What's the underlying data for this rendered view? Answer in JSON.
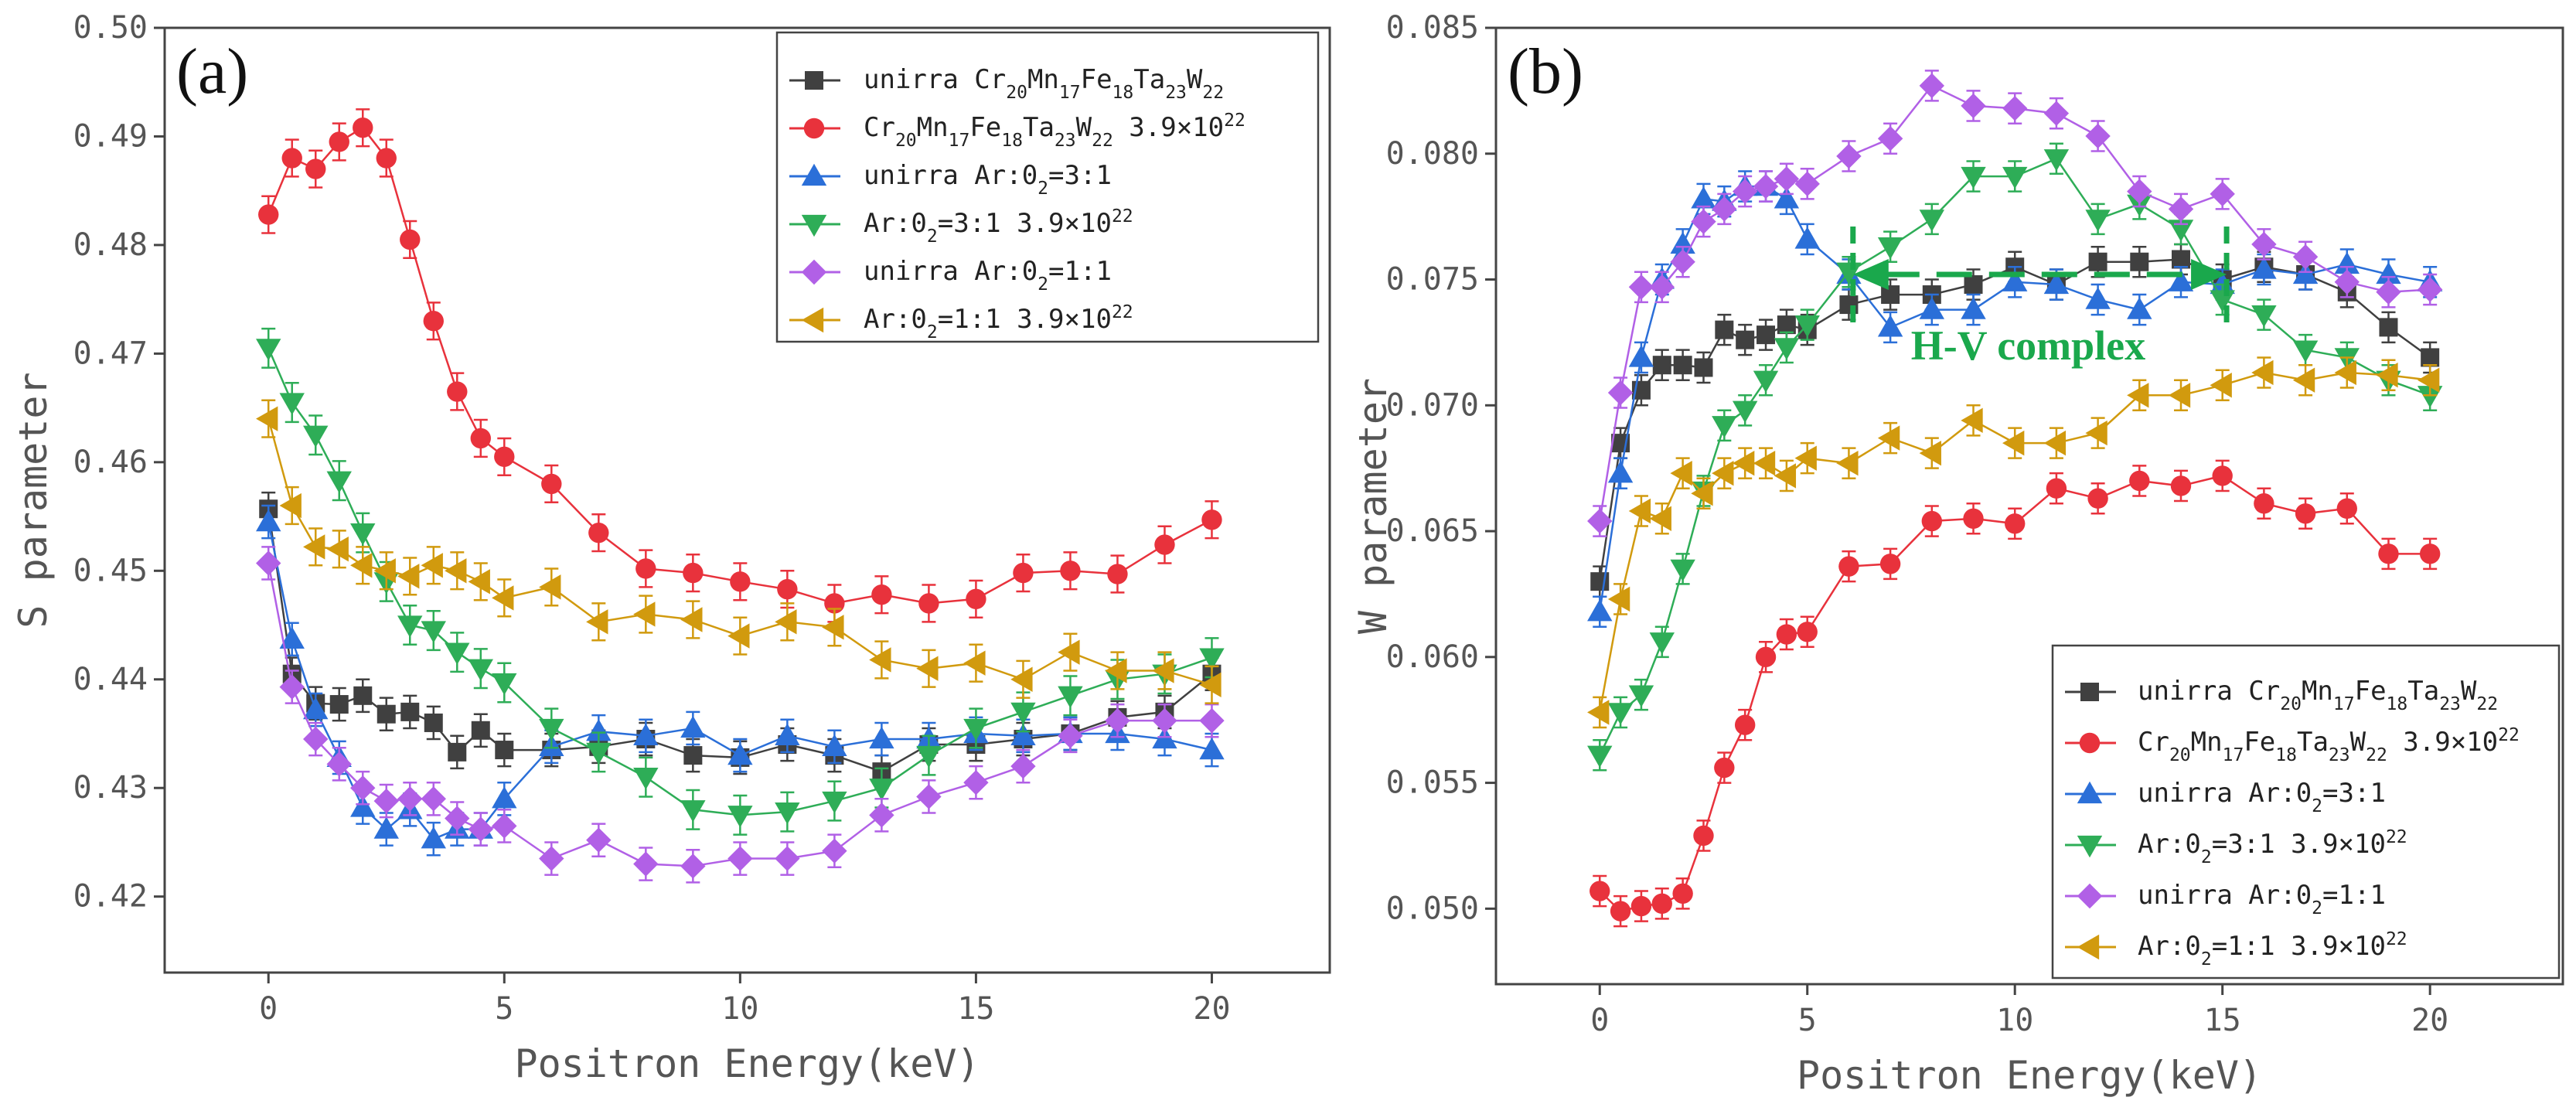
{
  "chart_data": [
    {
      "type": "line",
      "panel_label": "(a)",
      "xlabel": "Positron Energy(keV)",
      "ylabel": "S parameter",
      "xlim": [
        -2.2,
        22.5
      ],
      "ylim": [
        0.413,
        0.5
      ],
      "xticks": [
        0,
        5,
        10,
        15,
        20
      ],
      "xtick_labels": [
        "0",
        "5",
        "10",
        "15",
        "20"
      ],
      "yticks": [
        0.42,
        0.43,
        0.44,
        0.45,
        0.46,
        0.47,
        0.48,
        0.49,
        0.5
      ],
      "ytick_labels": [
        "0.42",
        "0.43",
        "0.44",
        "0.45",
        "0.46",
        "0.47",
        "0.48",
        "0.49",
        "0.50"
      ],
      "legend_position": "top-right",
      "x": [
        0,
        0.5,
        1,
        1.5,
        2,
        2.5,
        3,
        3.5,
        4,
        4.5,
        5,
        6,
        7,
        8,
        9,
        10,
        11,
        12,
        13,
        14,
        15,
        16,
        17,
        18,
        19,
        20
      ],
      "series": [
        {
          "id": "unirra-cmfttw",
          "marker": "square",
          "color": "#404040",
          "error": 0.0015,
          "values": [
            0.4557,
            0.4405,
            0.4378,
            0.4377,
            0.4385,
            0.4368,
            0.437,
            0.436,
            0.4333,
            0.4353,
            0.4335,
            0.4335,
            0.4338,
            0.4345,
            0.433,
            0.4328,
            0.434,
            0.433,
            0.4315,
            0.434,
            0.434,
            0.4345,
            0.435,
            0.4365,
            0.437,
            0.4405
          ]
        },
        {
          "id": "irr-cmfttw",
          "marker": "circle",
          "color": "#e8323c",
          "error": 0.0017,
          "values": [
            0.4828,
            0.488,
            0.487,
            0.4895,
            0.4908,
            0.488,
            0.4805,
            0.473,
            0.4665,
            0.4622,
            0.4605,
            0.458,
            0.4535,
            0.4502,
            0.4498,
            0.449,
            0.4483,
            0.447,
            0.4478,
            0.447,
            0.4474,
            0.4498,
            0.45,
            0.4497,
            0.4524,
            0.4547
          ]
        },
        {
          "id": "unirra-ar31",
          "marker": "triangle-up",
          "color": "#2b6fd8",
          "error": 0.0015,
          "values": [
            0.4545,
            0.4437,
            0.4372,
            0.4328,
            0.4282,
            0.4262,
            0.428,
            0.4253,
            0.4262,
            0.4262,
            0.429,
            0.4338,
            0.4352,
            0.4348,
            0.4355,
            0.433,
            0.4348,
            0.4338,
            0.4345,
            0.4345,
            0.435,
            0.4348,
            0.435,
            0.435,
            0.4345,
            0.4335
          ]
        },
        {
          "id": "irr-ar31",
          "marker": "triangle-down",
          "color": "#2ead57",
          "error": 0.0018,
          "values": [
            0.4705,
            0.4655,
            0.4625,
            0.4583,
            0.4535,
            0.449,
            0.445,
            0.4445,
            0.4425,
            0.441,
            0.4397,
            0.4355,
            0.4333,
            0.431,
            0.428,
            0.4275,
            0.4278,
            0.4288,
            0.43,
            0.433,
            0.4355,
            0.437,
            0.4385,
            0.44,
            0.4405,
            0.442
          ]
        },
        {
          "id": "unirra-ar11",
          "marker": "diamond",
          "color": "#b160e6",
          "error": 0.0015,
          "values": [
            0.4507,
            0.4393,
            0.4345,
            0.4322,
            0.43,
            0.4288,
            0.429,
            0.429,
            0.4272,
            0.4262,
            0.4265,
            0.4235,
            0.4252,
            0.423,
            0.4228,
            0.4235,
            0.4235,
            0.4242,
            0.4275,
            0.4292,
            0.4305,
            0.432,
            0.4348,
            0.4362,
            0.4362,
            0.4362
          ]
        },
        {
          "id": "irr-ar11",
          "marker": "triangle-left",
          "color": "#d19a0e",
          "error": 0.0017,
          "values": [
            0.464,
            0.456,
            0.4522,
            0.452,
            0.4505,
            0.45,
            0.4495,
            0.4505,
            0.45,
            0.449,
            0.4475,
            0.4485,
            0.4453,
            0.446,
            0.4455,
            0.444,
            0.4453,
            0.4448,
            0.4418,
            0.441,
            0.4415,
            0.44,
            0.4425,
            0.4408,
            0.4408,
            0.4395
          ]
        }
      ],
      "legend": [
        {
          "prefix": "unirra Cr",
          "parts": [
            [
              "20",
              "Mn"
            ],
            [
              "17",
              "Fe"
            ],
            [
              "18",
              "Ta"
            ],
            [
              "23",
              "W"
            ],
            [
              "22",
              ""
            ]
          ],
          "suffix": ""
        },
        {
          "prefix": "Cr",
          "parts": [
            [
              "20",
              "Mn"
            ],
            [
              "17",
              "Fe"
            ],
            [
              "18",
              "Ta"
            ],
            [
              "23",
              "W"
            ],
            [
              "22",
              ""
            ]
          ],
          "suffix": " 3.9×10",
          "sup": "22"
        },
        {
          "prefix": "unirra Ar:0",
          "parts": [
            [
              "2",
              "=3:1"
            ]
          ],
          "suffix": ""
        },
        {
          "prefix": "Ar:0",
          "parts": [
            [
              "2",
              "=3:1"
            ]
          ],
          "suffix": " 3.9×10",
          "sup": "22"
        },
        {
          "prefix": "unirra Ar:0",
          "parts": [
            [
              "2",
              "=1:1"
            ]
          ],
          "suffix": ""
        },
        {
          "prefix": "Ar:0",
          "parts": [
            [
              "2",
              "=1:1"
            ]
          ],
          "suffix": " 3.9×10",
          "sup": "22"
        }
      ]
    },
    {
      "type": "line",
      "panel_label": "(b)",
      "xlabel": "Positron Energy(keV)",
      "ylabel": "W parameter",
      "xlim": [
        -2.5,
        23.2
      ],
      "ylim": [
        0.047,
        0.085
      ],
      "xticks": [
        0,
        5,
        10,
        15,
        20
      ],
      "xtick_labels": [
        "0",
        "5",
        "10",
        "15",
        "20"
      ],
      "yticks": [
        0.05,
        0.055,
        0.06,
        0.065,
        0.07,
        0.075,
        0.08,
        0.085
      ],
      "ytick_labels": [
        "0.050",
        "0.055",
        "0.060",
        "0.065",
        "0.070",
        "0.075",
        "0.080",
        "0.085"
      ],
      "legend_position": "bottom-right",
      "annotation": {
        "text": "H-V complex",
        "x_from": 6.1,
        "x_to": 15.1,
        "y": 0.0752
      },
      "x": [
        0,
        0.5,
        1,
        1.5,
        2,
        2.5,
        3,
        3.5,
        4,
        4.5,
        5,
        6,
        7,
        8,
        9,
        10,
        11,
        12,
        13,
        14,
        15,
        16,
        17,
        18,
        19,
        20
      ],
      "series": [
        {
          "id": "unirra-cmfttw",
          "marker": "square",
          "color": "#404040",
          "error": 0.0006,
          "values": [
            0.063,
            0.0685,
            0.0706,
            0.0716,
            0.0716,
            0.0715,
            0.073,
            0.0726,
            0.0728,
            0.0732,
            0.073,
            0.074,
            0.0744,
            0.0744,
            0.0748,
            0.0755,
            0.0748,
            0.0757,
            0.0757,
            0.0758,
            0.075,
            0.0755,
            0.0752,
            0.0745,
            0.0731,
            0.0719
          ]
        },
        {
          "id": "irr-cmfttw",
          "marker": "circle",
          "color": "#e8323c",
          "error": 0.0006,
          "values": [
            0.0507,
            0.0499,
            0.0501,
            0.0502,
            0.0506,
            0.0529,
            0.0556,
            0.0573,
            0.06,
            0.0609,
            0.061,
            0.0636,
            0.0637,
            0.0654,
            0.0655,
            0.0653,
            0.0667,
            0.0663,
            0.067,
            0.0668,
            0.0672,
            0.0661,
            0.0657,
            0.0659,
            0.0641,
            0.0641
          ]
        },
        {
          "id": "unirra-ar31",
          "marker": "triangle-up",
          "color": "#2b6fd8",
          "error": 0.0006,
          "values": [
            0.0618,
            0.0673,
            0.0719,
            0.075,
            0.0764,
            0.0782,
            0.0781,
            0.0787,
            0.0787,
            0.0782,
            0.0766,
            0.0752,
            0.0731,
            0.0738,
            0.0738,
            0.0749,
            0.0748,
            0.0742,
            0.0738,
            0.0749,
            0.0748,
            0.0754,
            0.0752,
            0.0756,
            0.0752,
            0.0749
          ]
        },
        {
          "id": "irr-ar31",
          "marker": "triangle-down",
          "color": "#2ead57",
          "error": 0.0006,
          "values": [
            0.0561,
            0.0578,
            0.0585,
            0.0606,
            0.0635,
            0.0666,
            0.0692,
            0.0698,
            0.071,
            0.0723,
            0.0732,
            0.0753,
            0.0763,
            0.0774,
            0.0791,
            0.0791,
            0.0798,
            0.0774,
            0.078,
            0.077,
            0.0742,
            0.0736,
            0.0722,
            0.0719,
            0.071,
            0.0704
          ]
        },
        {
          "id": "unirra-ar11",
          "marker": "diamond",
          "color": "#b160e6",
          "error": 0.0006,
          "values": [
            0.0654,
            0.0705,
            0.0747,
            0.0747,
            0.0757,
            0.0773,
            0.0778,
            0.0785,
            0.0787,
            0.079,
            0.0788,
            0.0799,
            0.0806,
            0.0827,
            0.0819,
            0.0818,
            0.0816,
            0.0807,
            0.0785,
            0.0778,
            0.0784,
            0.0764,
            0.0759,
            0.0749,
            0.0745,
            0.0746
          ]
        },
        {
          "id": "irr-ar11",
          "marker": "triangle-left",
          "color": "#d19a0e",
          "error": 0.0006,
          "values": [
            0.0578,
            0.0623,
            0.0658,
            0.0655,
            0.0673,
            0.0665,
            0.0673,
            0.0677,
            0.0677,
            0.0672,
            0.0679,
            0.0677,
            0.0687,
            0.0681,
            0.0694,
            0.0685,
            0.0685,
            0.0689,
            0.0704,
            0.0704,
            0.0708,
            0.0713,
            0.071,
            0.0713,
            0.0712,
            0.071
          ]
        }
      ],
      "legend": [
        {
          "prefix": "unirra Cr",
          "parts": [
            [
              "20",
              "Mn"
            ],
            [
              "17",
              "Fe"
            ],
            [
              "18",
              "Ta"
            ],
            [
              "23",
              "W"
            ],
            [
              "22",
              ""
            ]
          ],
          "suffix": ""
        },
        {
          "prefix": "Cr",
          "parts": [
            [
              "20",
              "Mn"
            ],
            [
              "17",
              "Fe"
            ],
            [
              "18",
              "Ta"
            ],
            [
              "23",
              "W"
            ],
            [
              "22",
              ""
            ]
          ],
          "suffix": " 3.9×10",
          "sup": "22"
        },
        {
          "prefix": "unirra Ar:0",
          "parts": [
            [
              "2",
              "=3:1"
            ]
          ],
          "suffix": ""
        },
        {
          "prefix": "Ar:0",
          "parts": [
            [
              "2",
              "=3:1"
            ]
          ],
          "suffix": " 3.9×10",
          "sup": "22"
        },
        {
          "prefix": "unirra Ar:0",
          "parts": [
            [
              "2",
              "=1:1"
            ]
          ],
          "suffix": ""
        },
        {
          "prefix": "Ar:0",
          "parts": [
            [
              "2",
              "=1:1"
            ]
          ],
          "suffix": " 3.9×10",
          "sup": "22"
        }
      ]
    }
  ]
}
